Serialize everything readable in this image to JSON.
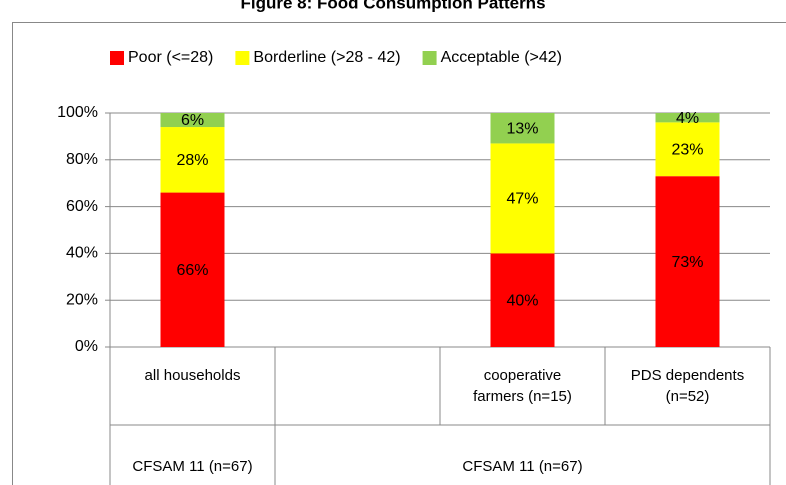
{
  "chart_data": {
    "type": "stacked_bar",
    "title": "Figure 8: Food Consumption Patterns",
    "categories": [
      "all households",
      null,
      "cooperative farmers (n=15)",
      "PDS dependents (n=52)"
    ],
    "group_labels": [
      "CFSAM 11 (n=67)",
      "CFSAM 11 (n=67)"
    ],
    "series": [
      {
        "name": "Poor (<=28)",
        "color": "#ff0000",
        "values": [
          66,
          null,
          40,
          73
        ],
        "value_labels": [
          "66%",
          null,
          "40%",
          "73%"
        ]
      },
      {
        "name": "Borderline (>28 - 42)",
        "color": "#ffff00",
        "values": [
          28,
          null,
          47,
          23
        ],
        "value_labels": [
          "28%",
          null,
          "47%",
          "23%"
        ]
      },
      {
        "name": "Acceptable (>42)",
        "color": "#92d050",
        "values": [
          6,
          null,
          13,
          4
        ],
        "value_labels": [
          "6%",
          null,
          "13%",
          "4%"
        ]
      }
    ],
    "ylim": [
      0,
      100
    ],
    "yticks": [
      {
        "value": 0,
        "label": "0%"
      },
      {
        "value": 20,
        "label": "20%"
      },
      {
        "value": 40,
        "label": "40%"
      },
      {
        "value": 60,
        "label": "60%"
      },
      {
        "value": 80,
        "label": "80%"
      },
      {
        "value": 100,
        "label": "100%"
      }
    ],
    "grid": true,
    "legend": "top"
  }
}
